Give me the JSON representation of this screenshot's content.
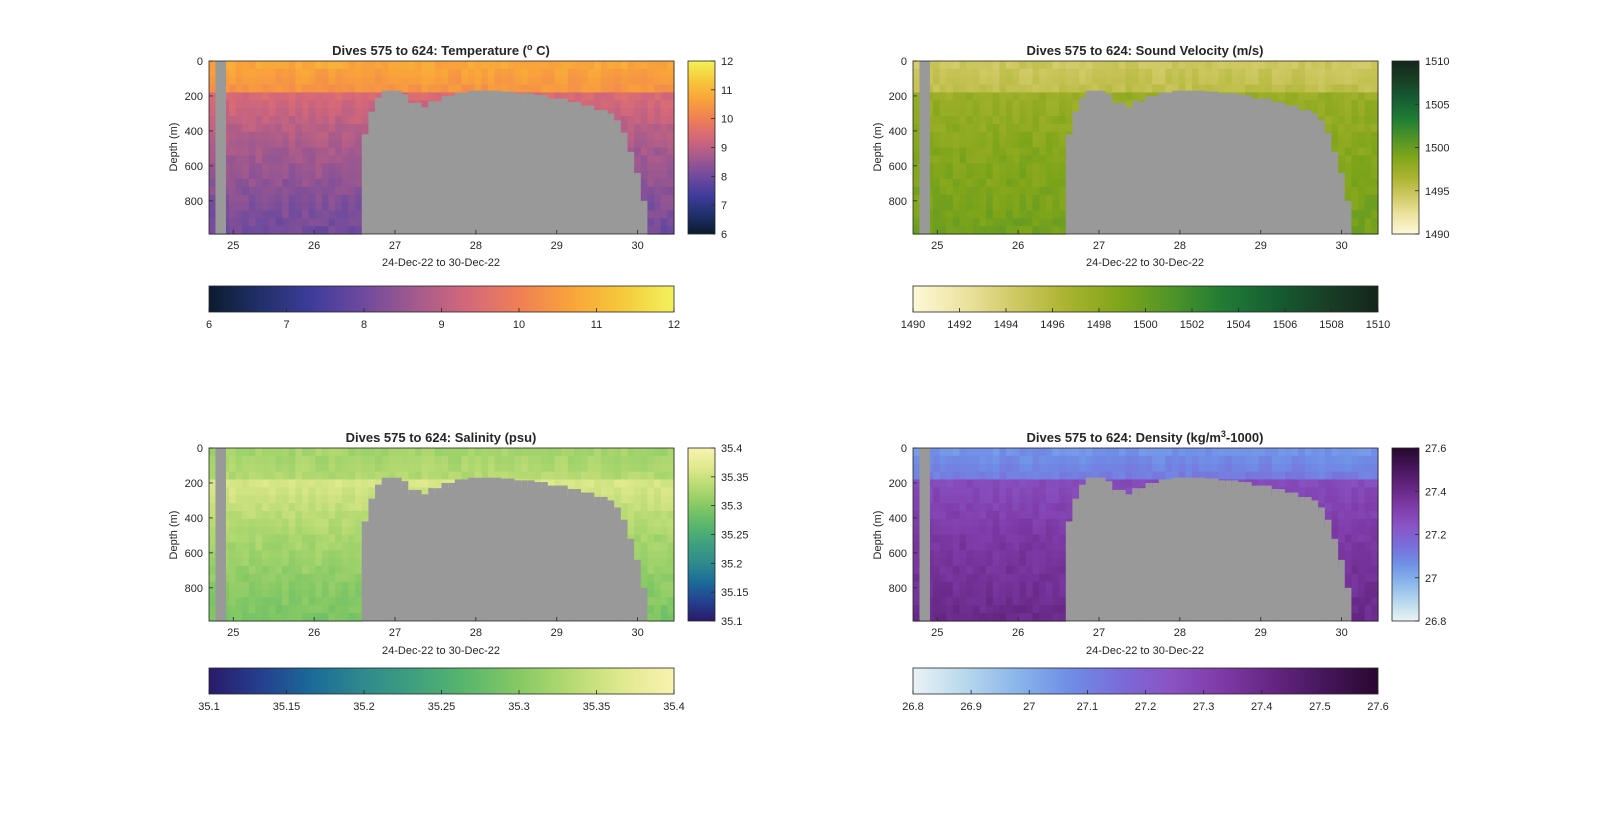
{
  "chart_data": [
    {
      "type": "heatmap",
      "title": "Dives 575 to 624: Temperature (",
      "title_sup": "o",
      "title_tail": " C)",
      "xlabel": "24-Dec-22 to 30-Dec-22",
      "ylabel": "Depth (m)",
      "xlim": [
        24.7,
        30.45
      ],
      "ylim": [
        0,
        990
      ],
      "xticks": [
        "25",
        "26",
        "27",
        "28",
        "29",
        "30"
      ],
      "yticks": [
        "0",
        "200",
        "400",
        "600",
        "800"
      ],
      "colorbar_range": [
        6,
        12
      ],
      "colorbar_vertical_ticks": [
        "6",
        "7",
        "8",
        "9",
        "10",
        "11",
        "12"
      ],
      "colorbar_horizontal_ticks": [
        "6",
        "7",
        "8",
        "9",
        "10",
        "11",
        "12"
      ],
      "colormap": [
        "#0b1b2e",
        "#20306a",
        "#3f3c9b",
        "#6f4a9e",
        "#a45a8d",
        "#d4687a",
        "#f07f55",
        "#f9a33a",
        "#f6c93b",
        "#f2f25a"
      ],
      "typical_values": {
        "surface_0_200m": 10.8,
        "mid_200_500m": 9.4,
        "deep_500_990m": 8.0
      }
    },
    {
      "type": "heatmap",
      "title": "Dives 575 to 624: Sound Velocity (m/s)",
      "xlabel": "24-Dec-22 to 30-Dec-22",
      "ylabel": "Depth (m)",
      "xlim": [
        24.7,
        30.45
      ],
      "ylim": [
        0,
        990
      ],
      "xticks": [
        "25",
        "26",
        "27",
        "28",
        "29",
        "30"
      ],
      "yticks": [
        "0",
        "200",
        "400",
        "600",
        "800"
      ],
      "colorbar_range": [
        1490,
        1510
      ],
      "colorbar_vertical_ticks": [
        "1490",
        "1495",
        "1500",
        "1505",
        "1510"
      ],
      "colorbar_horizontal_ticks": [
        "1490",
        "1492",
        "1494",
        "1496",
        "1498",
        "1500",
        "1502",
        "1504",
        "1506",
        "1508",
        "1510"
      ],
      "colormap": [
        "#fdf8d8",
        "#ece3a0",
        "#cfc862",
        "#a9b32e",
        "#7fa51a",
        "#4f9428",
        "#1f7c34",
        "#165e32",
        "#183f26",
        "#14261a"
      ],
      "typical_values": {
        "surface_0_200m": 1494.5,
        "mid_200_500m": 1497.5,
        "deep_500_990m": 1499.5
      }
    },
    {
      "type": "heatmap",
      "title": "Dives 575 to 624: Salinity (psu)",
      "xlabel": "24-Dec-22 to 30-Dec-22",
      "ylabel": "Depth (m)",
      "xlim": [
        24.7,
        30.45
      ],
      "ylim": [
        0,
        990
      ],
      "xticks": [
        "25",
        "26",
        "27",
        "28",
        "29",
        "30"
      ],
      "yticks": [
        "0",
        "200",
        "400",
        "600",
        "800"
      ],
      "colorbar_range": [
        35.1,
        35.4
      ],
      "colorbar_vertical_ticks": [
        "35.1",
        "35.15",
        "35.2",
        "35.25",
        "35.3",
        "35.35",
        "35.4"
      ],
      "colorbar_horizontal_ticks": [
        "35.1",
        "35.15",
        "35.2",
        "35.25",
        "35.3",
        "35.35",
        "35.4"
      ],
      "colormap": [
        "#2a1a6a",
        "#253f8f",
        "#1b6b98",
        "#2f8a8c",
        "#3fa07e",
        "#5ab76c",
        "#86c964",
        "#b6da72",
        "#e0e98e",
        "#f8f3b0"
      ],
      "typical_values": {
        "surface_0_200m": 35.32,
        "mid_200_500m": 35.36,
        "deep_500_990m": 35.29
      }
    },
    {
      "type": "heatmap",
      "title": "Dives 575 to 624: Density (kg/m",
      "title_sup": "3",
      "title_tail": "-1000)",
      "xlabel": "24-Dec-22 to 30-Dec-22",
      "ylabel": "Depth (m)",
      "xlim": [
        24.7,
        30.45
      ],
      "ylim": [
        0,
        990
      ],
      "xticks": [
        "25",
        "26",
        "27",
        "28",
        "29",
        "30"
      ],
      "yticks": [
        "0",
        "200",
        "400",
        "600",
        "800"
      ],
      "colorbar_range": [
        26.8,
        27.6
      ],
      "colorbar_vertical_ticks": [
        "26.8",
        "27",
        "27.2",
        "27.4",
        "27.6"
      ],
      "colorbar_horizontal_ticks": [
        "26.8",
        "26.9",
        "27",
        "27.1",
        "27.2",
        "27.3",
        "27.4",
        "27.5",
        "27.6"
      ],
      "colormap": [
        "#eaf3f5",
        "#b8d8ec",
        "#8ab6ea",
        "#6f8fe6",
        "#7a6cd8",
        "#8a52c3",
        "#7d3aa6",
        "#632580",
        "#45155a",
        "#27082e"
      ],
      "typical_values": {
        "surface_0_200m": 27.05,
        "mid_200_500m": 27.27,
        "deep_500_990m": 27.4
      }
    }
  ],
  "bathymetry_depth_m": {
    "x": [
      26.55,
      26.65,
      26.75,
      26.85,
      27.0,
      27.1,
      27.2,
      27.3,
      27.45,
      27.6,
      27.75,
      27.9,
      28.1,
      28.3,
      28.5,
      28.7,
      28.9,
      29.1,
      29.3,
      29.5,
      29.6,
      29.7,
      29.8,
      29.88,
      29.95,
      30.05,
      30.1
    ],
    "depth": [
      590,
      420,
      290,
      210,
      170,
      190,
      240,
      265,
      265,
      230,
      200,
      180,
      170,
      175,
      185,
      195,
      215,
      235,
      255,
      280,
      300,
      340,
      410,
      520,
      640,
      800,
      990
    ]
  },
  "gap_x": [
    24.78,
    24.91
  ]
}
